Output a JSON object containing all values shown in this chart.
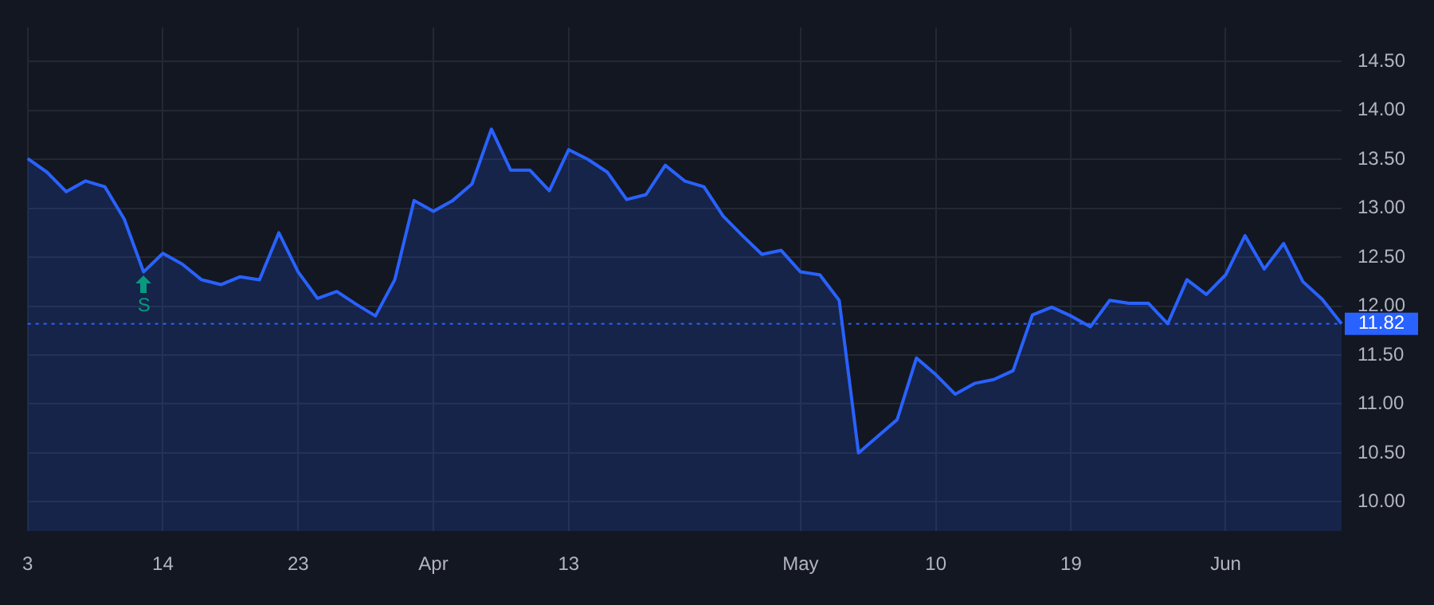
{
  "chart_data": {
    "type": "area",
    "categories": [
      "3",
      null,
      null,
      null,
      null,
      null,
      null,
      "14",
      null,
      null,
      null,
      null,
      null,
      null,
      "23",
      null,
      null,
      null,
      null,
      null,
      null,
      "Apr",
      null,
      null,
      null,
      null,
      null,
      null,
      "13",
      null,
      null,
      null,
      null,
      null,
      null,
      null,
      null,
      null,
      null,
      null,
      "May",
      null,
      null,
      null,
      null,
      null,
      null,
      "10",
      null,
      null,
      null,
      null,
      null,
      null,
      "19",
      null,
      null,
      null,
      null,
      null,
      null,
      null,
      "Jun",
      null,
      null,
      null,
      null,
      null,
      null
    ],
    "series": [
      {
        "color": "#2962ff",
        "values": [
          13.51,
          13.37,
          13.17,
          13.28,
          13.22,
          12.89,
          12.35,
          12.54,
          12.43,
          12.27,
          12.22,
          12.3,
          12.27,
          12.75,
          12.35,
          12.08,
          12.15,
          12.02,
          11.9,
          12.27,
          13.08,
          12.97,
          13.08,
          13.25,
          13.81,
          13.39,
          13.39,
          13.18,
          13.6,
          13.5,
          13.37,
          13.09,
          13.14,
          13.44,
          13.28,
          13.22,
          12.92,
          12.72,
          12.53,
          12.57,
          12.35,
          12.32,
          12.06,
          10.5,
          10.67,
          10.84,
          11.47,
          11.3,
          11.1,
          11.21,
          11.25,
          11.34,
          11.91,
          11.99,
          11.9,
          11.79,
          12.06,
          12.03,
          12.03,
          11.82,
          12.27,
          12.12,
          12.32,
          12.72,
          12.38,
          12.64,
          12.25,
          12.07,
          11.82
        ]
      }
    ],
    "ylim": [
      9.7,
      14.85
    ],
    "yticks": [
      {
        "value": 10,
        "label": "10.00"
      },
      {
        "value": 10.5,
        "label": "10.50"
      },
      {
        "value": 11,
        "label": "11.00"
      },
      {
        "value": 11.5,
        "label": "11.50"
      },
      {
        "value": 12,
        "label": "12.00"
      },
      {
        "value": 12.5,
        "label": "12.50"
      },
      {
        "value": 13,
        "label": "13.00"
      },
      {
        "value": 13.5,
        "label": "13.50"
      },
      {
        "value": 14,
        "label": "14.00"
      },
      {
        "value": 14.5,
        "label": "14.50"
      }
    ],
    "grid": true,
    "ref_lines": [
      {
        "axis": "y",
        "value": 11.82,
        "label": "11.82",
        "color": "#2962ff",
        "line_style": "dotted"
      }
    ],
    "annotations": [
      "S"
    ],
    "legend": false
  }
}
